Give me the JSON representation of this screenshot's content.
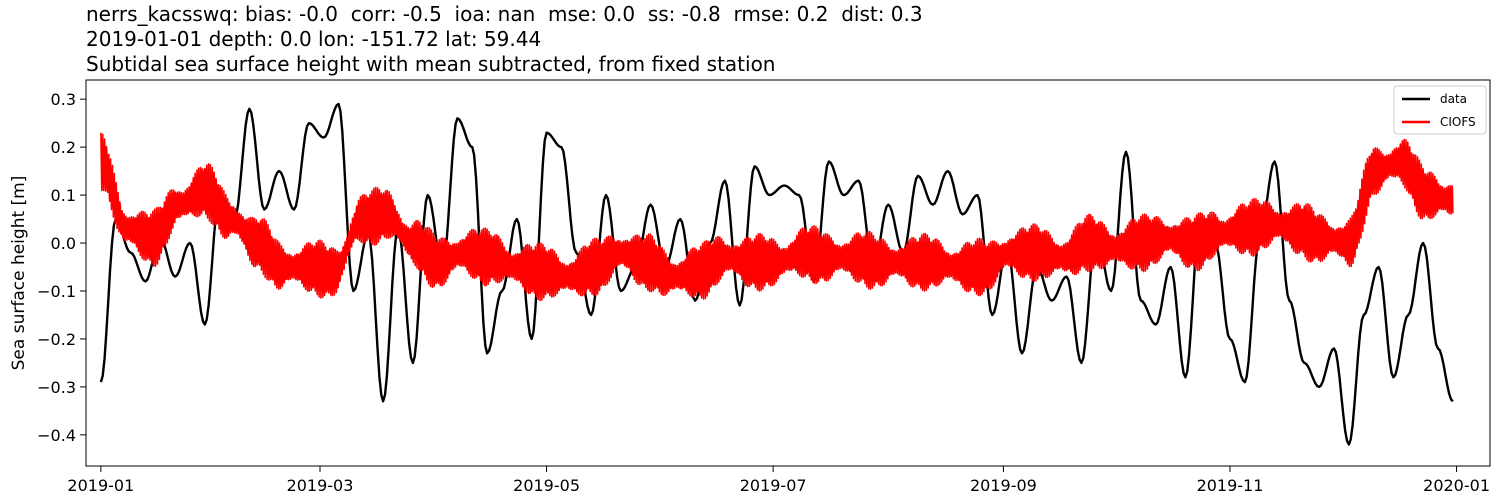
{
  "title_lines": [
    "nerrs_kacsswq: bias: -0.0  corr: -0.5  ioa: nan  mse: 0.0  ss: -0.8  rmse: 0.2  dist: 0.3",
    "2019-01-01 depth: 0.0 lon: -151.72 lat: 59.44",
    "Subtidal sea surface height with mean subtracted, from fixed station"
  ],
  "chart_data": {
    "type": "line",
    "ylabel": "Sea surface height [m]",
    "xlim": [
      "2018-12-28",
      "2020-01-10"
    ],
    "ylim": [
      -0.465,
      0.34
    ],
    "x_ticks": [
      "2019-01",
      "2019-03",
      "2019-05",
      "2019-07",
      "2019-09",
      "2019-11",
      "2020-01"
    ],
    "x_tick_dates": [
      "2019-01-01",
      "2019-03-01",
      "2019-05-01",
      "2019-07-01",
      "2019-09-01",
      "2019-11-01",
      "2020-01-01"
    ],
    "y_ticks": [
      0.3,
      0.2,
      0.1,
      0.0,
      -0.1,
      -0.2,
      -0.3,
      -0.4
    ],
    "y_tick_labels": [
      "0.3",
      "0.2",
      "0.1",
      "0.0",
      "−0.1",
      "−0.2",
      "−0.3",
      "−0.4"
    ],
    "grid": false,
    "legend_position": "top-right",
    "series": [
      {
        "name": "data",
        "color": "#000000",
        "x": [
          "2019-01-01",
          "2019-01-05",
          "2019-01-09",
          "2019-01-13",
          "2019-01-17",
          "2019-01-21",
          "2019-01-25",
          "2019-01-29",
          "2019-02-02",
          "2019-02-06",
          "2019-02-10",
          "2019-02-14",
          "2019-02-18",
          "2019-02-22",
          "2019-02-26",
          "2019-03-02",
          "2019-03-06",
          "2019-03-10",
          "2019-03-14",
          "2019-03-18",
          "2019-03-22",
          "2019-03-26",
          "2019-03-30",
          "2019-04-03",
          "2019-04-07",
          "2019-04-11",
          "2019-04-15",
          "2019-04-19",
          "2019-04-23",
          "2019-04-27",
          "2019-05-01",
          "2019-05-05",
          "2019-05-09",
          "2019-05-13",
          "2019-05-17",
          "2019-05-21",
          "2019-05-25",
          "2019-05-29",
          "2019-06-02",
          "2019-06-06",
          "2019-06-10",
          "2019-06-14",
          "2019-06-18",
          "2019-06-22",
          "2019-06-26",
          "2019-06-30",
          "2019-07-04",
          "2019-07-08",
          "2019-07-12",
          "2019-07-16",
          "2019-07-20",
          "2019-07-24",
          "2019-07-28",
          "2019-08-01",
          "2019-08-05",
          "2019-08-09",
          "2019-08-13",
          "2019-08-17",
          "2019-08-21",
          "2019-08-25",
          "2019-08-29",
          "2019-09-02",
          "2019-09-06",
          "2019-09-10",
          "2019-09-14",
          "2019-09-18",
          "2019-09-22",
          "2019-09-26",
          "2019-09-30",
          "2019-10-04",
          "2019-10-08",
          "2019-10-12",
          "2019-10-16",
          "2019-10-20",
          "2019-10-24",
          "2019-10-28",
          "2019-11-01",
          "2019-11-05",
          "2019-11-09",
          "2019-11-13",
          "2019-11-17",
          "2019-11-21",
          "2019-11-25",
          "2019-11-29",
          "2019-12-03",
          "2019-12-07",
          "2019-12-11",
          "2019-12-15",
          "2019-12-19",
          "2019-12-23",
          "2019-12-27",
          "2019-12-31"
        ],
        "values": [
          -0.29,
          0.05,
          -0.02,
          -0.08,
          0.01,
          -0.07,
          0.0,
          -0.17,
          0.1,
          0.05,
          0.28,
          0.07,
          0.15,
          0.07,
          0.25,
          0.22,
          0.29,
          -0.1,
          0.02,
          -0.33,
          0.03,
          -0.25,
          0.1,
          -0.05,
          0.26,
          0.2,
          -0.23,
          -0.1,
          0.05,
          -0.2,
          0.23,
          0.2,
          -0.02,
          -0.15,
          0.1,
          -0.1,
          -0.05,
          0.08,
          -0.05,
          0.05,
          -0.12,
          0.0,
          0.13,
          -0.13,
          0.16,
          0.1,
          0.12,
          0.1,
          -0.08,
          0.17,
          0.1,
          0.13,
          -0.05,
          0.08,
          -0.02,
          0.14,
          0.08,
          0.15,
          0.06,
          0.1,
          -0.15,
          -0.01,
          -0.23,
          -0.05,
          -0.12,
          -0.07,
          -0.25,
          0.02,
          -0.1,
          0.19,
          -0.12,
          -0.17,
          -0.05,
          -0.28,
          0.05,
          0.0,
          -0.2,
          -0.29,
          0.01,
          0.17,
          -0.12,
          -0.25,
          -0.3,
          -0.22,
          -0.42,
          -0.15,
          -0.05,
          -0.28,
          -0.15,
          0.0,
          -0.22,
          -0.33
        ]
      },
      {
        "name": "CIOFS",
        "color": "#ff0000",
        "x": [
          "2019-01-01",
          "2019-01-08",
          "2019-01-15",
          "2019-01-22",
          "2019-01-29",
          "2019-02-05",
          "2019-02-12",
          "2019-02-19",
          "2019-02-26",
          "2019-03-05",
          "2019-03-12",
          "2019-03-19",
          "2019-03-26",
          "2019-04-02",
          "2019-04-09",
          "2019-04-16",
          "2019-04-23",
          "2019-04-30",
          "2019-05-07",
          "2019-05-14",
          "2019-05-21",
          "2019-05-28",
          "2019-06-04",
          "2019-06-11",
          "2019-06-18",
          "2019-06-25",
          "2019-07-02",
          "2019-07-09",
          "2019-07-16",
          "2019-07-23",
          "2019-07-30",
          "2019-08-06",
          "2019-08-13",
          "2019-08-20",
          "2019-08-27",
          "2019-09-03",
          "2019-09-10",
          "2019-09-17",
          "2019-09-24",
          "2019-10-01",
          "2019-10-08",
          "2019-10-15",
          "2019-10-22",
          "2019-10-29",
          "2019-11-05",
          "2019-11-12",
          "2019-11-19",
          "2019-11-26",
          "2019-12-03",
          "2019-12-10",
          "2019-12-17",
          "2019-12-24",
          "2019-12-31"
        ],
        "values": [
          0.17,
          0.03,
          0.01,
          0.08,
          0.11,
          0.05,
          0.0,
          -0.05,
          -0.05,
          -0.06,
          0.05,
          0.06,
          0.0,
          -0.04,
          -0.02,
          -0.03,
          -0.05,
          -0.06,
          -0.07,
          -0.05,
          -0.02,
          -0.04,
          -0.07,
          -0.06,
          -0.03,
          -0.04,
          -0.04,
          -0.02,
          -0.03,
          -0.03,
          -0.04,
          -0.04,
          -0.04,
          -0.05,
          -0.05,
          -0.02,
          -0.02,
          -0.03,
          0.0,
          -0.01,
          0.0,
          0.01,
          0.0,
          0.02,
          0.03,
          0.04,
          0.03,
          0.01,
          0.0,
          0.15,
          0.17,
          0.1,
          0.09
        ],
        "oscillation_amplitude": 0.06
      }
    ]
  }
}
